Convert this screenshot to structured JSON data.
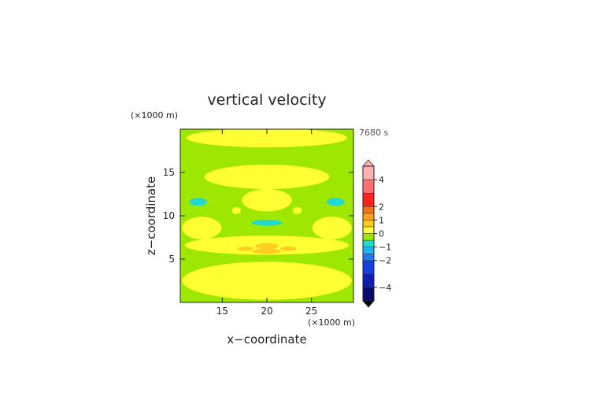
{
  "chart_data": {
    "type": "heatmap",
    "title": "vertical velocity",
    "time_label": "7680 s",
    "xlabel": "x−coordinate",
    "ylabel": "z−coordinate",
    "x_unit": "(×1000 m)",
    "y_unit": "(×1000 m)",
    "xlim": [
      10.3,
      29.7
    ],
    "ylim": [
      0,
      20
    ],
    "x_ticks": [
      15,
      20,
      25
    ],
    "y_ticks": [
      5,
      10,
      15
    ],
    "colorbar": {
      "ticks": [
        {
          "value": 4,
          "label": "4"
        },
        {
          "value": 2,
          "label": "2"
        },
        {
          "value": 1,
          "label": "1"
        },
        {
          "value": 0,
          "label": "0"
        },
        {
          "value": -1,
          "label": "−1"
        },
        {
          "value": -2,
          "label": "−2"
        },
        {
          "value": -4,
          "label": "−4"
        }
      ],
      "levels": [
        {
          "lo": -5.0,
          "hi": -4.0,
          "color": "#0a0a6e"
        },
        {
          "lo": -4.0,
          "hi": -3.0,
          "color": "#0d1fb0"
        },
        {
          "lo": -3.0,
          "hi": -2.0,
          "color": "#1740e0"
        },
        {
          "lo": -2.0,
          "hi": -1.5,
          "color": "#1e7cf0"
        },
        {
          "lo": -1.5,
          "hi": -1.0,
          "color": "#1eb4f0"
        },
        {
          "lo": -1.0,
          "hi": -0.5,
          "color": "#22d8d0"
        },
        {
          "lo": -0.5,
          "hi": 0.0,
          "color": "#9ee800"
        },
        {
          "lo": 0.0,
          "hi": 0.5,
          "color": "#ffff33"
        },
        {
          "lo": 0.5,
          "hi": 1.0,
          "color": "#ffcc22"
        },
        {
          "lo": 1.0,
          "hi": 1.5,
          "color": "#ffa020"
        },
        {
          "lo": 1.5,
          "hi": 2.0,
          "color": "#ff7010"
        },
        {
          "lo": 2.0,
          "hi": 3.0,
          "color": "#ff2020"
        },
        {
          "lo": 3.0,
          "hi": 4.0,
          "color": "#ff7070"
        },
        {
          "lo": 4.0,
          "hi": 5.0,
          "color": "#ffb0b0"
        }
      ]
    },
    "regions": [
      {
        "kind": "rect",
        "x0": 10.3,
        "x1": 29.7,
        "z0": 0.0,
        "z1": 20.0,
        "w": -0.2
      },
      {
        "kind": "ellipse",
        "cx": 20.0,
        "cz": 2.5,
        "rx": 9.5,
        "rz": 2.2,
        "w": 0.3
      },
      {
        "kind": "ellipse",
        "cx": 20.0,
        "cz": 6.6,
        "rx": 9.2,
        "rz": 1.1,
        "w": 0.3
      },
      {
        "kind": "ellipse",
        "cx": 20.0,
        "cz": 14.5,
        "rx": 7.0,
        "rz": 1.4,
        "w": 0.3
      },
      {
        "kind": "ellipse",
        "cx": 20.0,
        "cz": 19.0,
        "rx": 9.0,
        "rz": 1.1,
        "w": 0.3
      },
      {
        "kind": "ellipse",
        "cx": 20.0,
        "cz": 11.8,
        "rx": 2.8,
        "rz": 1.3,
        "w": 0.3
      },
      {
        "kind": "ellipse",
        "cx": 12.7,
        "cz": 8.6,
        "rx": 2.2,
        "rz": 1.3,
        "w": 0.3
      },
      {
        "kind": "ellipse",
        "cx": 27.3,
        "cz": 8.6,
        "rx": 2.2,
        "rz": 1.3,
        "w": 0.3
      },
      {
        "kind": "ellipse",
        "cx": 16.6,
        "cz": 10.6,
        "rx": 0.5,
        "rz": 0.4,
        "w": 0.3
      },
      {
        "kind": "ellipse",
        "cx": 23.4,
        "cz": 10.6,
        "rx": 0.5,
        "rz": 0.4,
        "w": 0.3
      },
      {
        "kind": "ellipse",
        "cx": 12.3,
        "cz": 11.6,
        "rx": 1.0,
        "rz": 0.45,
        "w": -0.8
      },
      {
        "kind": "ellipse",
        "cx": 27.7,
        "cz": 11.6,
        "rx": 1.0,
        "rz": 0.45,
        "w": -0.8
      },
      {
        "kind": "ellipse",
        "cx": 20.0,
        "cz": 9.2,
        "rx": 1.7,
        "rz": 0.35,
        "w": -0.8
      },
      {
        "kind": "ellipse",
        "cx": 20.0,
        "cz": 6.5,
        "rx": 1.3,
        "rz": 0.35,
        "w": 0.8
      },
      {
        "kind": "ellipse",
        "cx": 17.6,
        "cz": 6.2,
        "rx": 0.9,
        "rz": 0.25,
        "w": 0.8
      },
      {
        "kind": "ellipse",
        "cx": 22.4,
        "cz": 6.2,
        "rx": 0.9,
        "rz": 0.25,
        "w": 0.8
      },
      {
        "kind": "ellipse",
        "cx": 20.0,
        "cz": 5.9,
        "rx": 1.6,
        "rz": 0.3,
        "w": 0.8
      }
    ]
  }
}
